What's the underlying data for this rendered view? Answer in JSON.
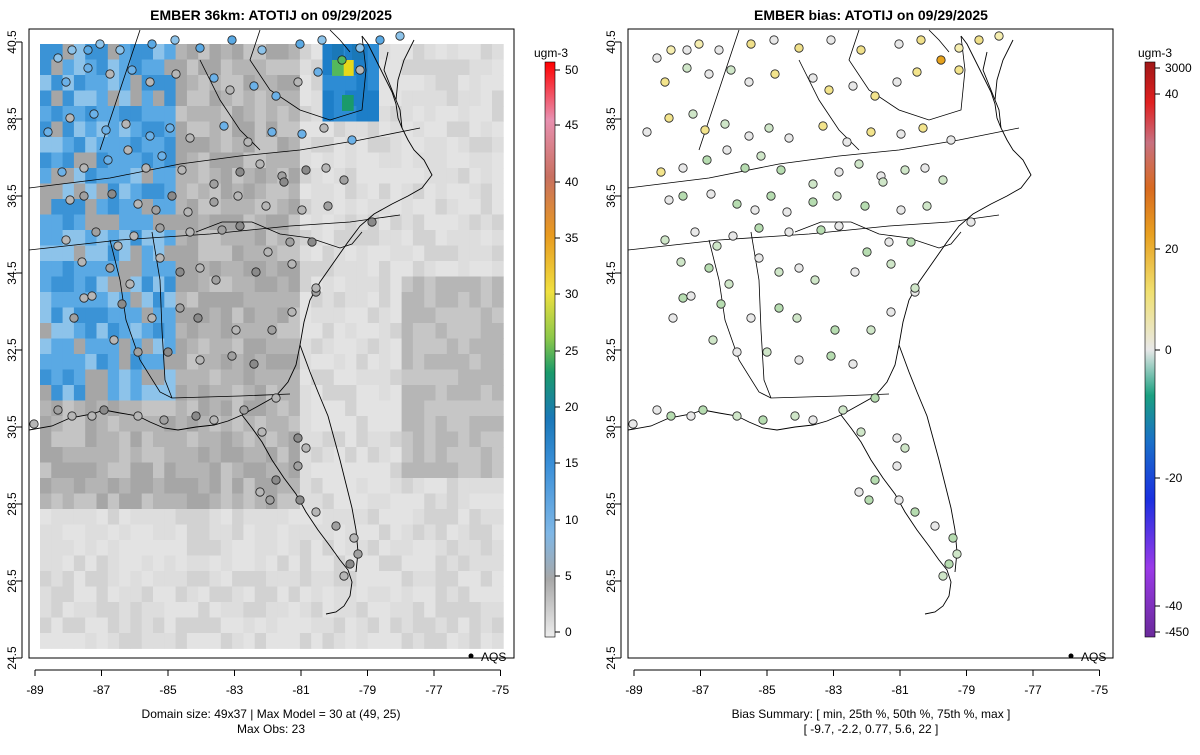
{
  "panels": [
    {
      "title": "EMBER 36km: ATOTIJ on 09/29/2025",
      "unit_label": "ugm-3",
      "x_ticks": [
        "-89",
        "-87",
        "-85",
        "-83",
        "-81",
        "-79",
        "-77",
        "-75"
      ],
      "y_ticks": [
        "40.5",
        "38.5",
        "36.5",
        "34.5",
        "32.5",
        "30.5",
        "28.5",
        "26.5",
        "24.5"
      ],
      "colorbar_ticks": [
        "50",
        "45",
        "40",
        "35",
        "30",
        "25",
        "20",
        "15",
        "10",
        "5",
        "0"
      ],
      "legend_label": "AQS",
      "caption_line1": "Domain size: 49x37 | Max Model = 30 at (49, 25)",
      "caption_line2": "Max Obs: 23"
    },
    {
      "title": "EMBER bias: ATOTIJ on 09/29/2025",
      "unit_label": "ugm-3",
      "x_ticks": [
        "-89",
        "-87",
        "-85",
        "-83",
        "-81",
        "-79",
        "-77",
        "-75"
      ],
      "y_ticks": [
        "40.5",
        "38.5",
        "36.5",
        "34.5",
        "32.5",
        "30.5",
        "28.5",
        "26.5",
        "24.5"
      ],
      "colorbar_ticks": [
        "3000",
        "40",
        "20",
        "0",
        "-20",
        "-40",
        "-450"
      ],
      "legend_label": "AQS",
      "caption_line1": "Bias Summary: [ min, 25th %, 50th %, 75th %, max ]",
      "caption_line2": "[ -9.7,  -2.2,  0.77,  5.6,  22 ]"
    }
  ],
  "colors": {
    "land_outline": "#000000",
    "model_high": "#e8e400",
    "model_mid": "#3d9be0",
    "model_low": "#dcdcdc",
    "bias_positive": "#e6a21e",
    "bias_negative": "#96c896",
    "bias_neutral": "#e6e6e6"
  }
}
